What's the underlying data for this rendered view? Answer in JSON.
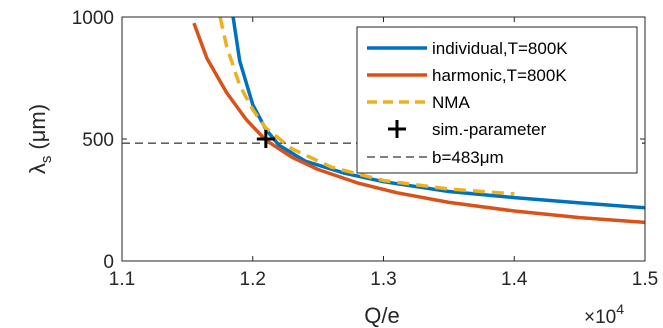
{
  "chart_data": {
    "type": "line",
    "title": "",
    "xlabel": "Q/e",
    "ylabel": "λ",
    "ylabel_subscript": "s",
    "ylabel_unit": "(μm)",
    "x_multiplier": "×10",
    "x_multiplier_exponent": "4",
    "xlim": [
      11000,
      15000
    ],
    "ylim": [
      0,
      1000
    ],
    "xticks": [
      11000,
      12000,
      13000,
      14000,
      15000
    ],
    "xtick_labels": [
      "1.1",
      "1.2",
      "1.3",
      "1.4",
      "1.5"
    ],
    "yticks": [
      0,
      500,
      1000
    ],
    "ytick_labels": [
      "0",
      "500",
      "1000"
    ],
    "grid": false,
    "legend_position": "top-right",
    "series": [
      {
        "name": "individual,T=800K",
        "color": "#0072BD",
        "style": "solid",
        "x": [
          11850,
          11900,
          12000,
          12100,
          12200,
          12400,
          12700,
          13000,
          13500,
          14000,
          14500,
          15000
        ],
        "y": [
          1000,
          820,
          640,
          540,
          475,
          410,
          360,
          325,
          285,
          260,
          238,
          218
        ]
      },
      {
        "name": "harmonic,T=800K",
        "color": "#D95319",
        "style": "solid",
        "x": [
          11550,
          11650,
          11800,
          11950,
          12100,
          12300,
          12500,
          12800,
          13100,
          13500,
          14000,
          14500,
          15000
        ],
        "y": [
          975,
          830,
          690,
          580,
          495,
          425,
          375,
          320,
          280,
          240,
          205,
          178,
          158
        ]
      },
      {
        "name": "NMA",
        "color": "#EDB120",
        "style": "dashed",
        "x": [
          11750,
          11800,
          11900,
          12000,
          12100,
          12300,
          12600,
          13000,
          13500,
          14000
        ],
        "y": [
          1000,
          880,
          720,
          620,
          545,
          460,
          385,
          330,
          295,
          275
        ]
      }
    ],
    "markers": [
      {
        "name": "sim.-parameter",
        "x": 12100,
        "y": 500,
        "symbol": "+",
        "color": "#000000"
      }
    ],
    "reference_lines": [
      {
        "name": "b=483μm",
        "y": 483,
        "color": "#000000",
        "style": "dashed"
      }
    ]
  }
}
